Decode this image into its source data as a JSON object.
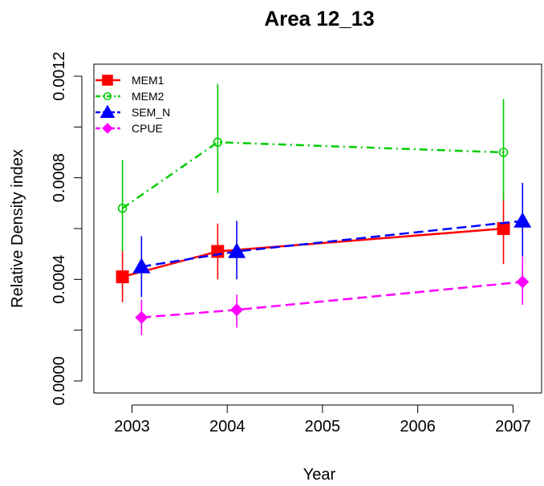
{
  "chart_data": {
    "type": "line",
    "title": "Area 12_13",
    "xlabel": "Year",
    "ylabel": "Relative Density index",
    "x_ticks": [
      "2003",
      "2004",
      "2005",
      "2006",
      "2007"
    ],
    "y_ticks": [
      "0.0000",
      "0.0004",
      "0.0008",
      "0.0012"
    ],
    "xlim": [
      2002.6,
      2007.3
    ],
    "ylim": [
      0.0,
      0.0012
    ],
    "legend_position": "top-left",
    "grid": false,
    "series": [
      {
        "name": "MEM1",
        "color": "#ff0000",
        "marker": "square",
        "line_style": "solid",
        "x": [
          2002.9,
          2003.9,
          2006.9
        ],
        "y": [
          0.00041,
          0.00051,
          0.0006
        ],
        "lower": [
          0.00031,
          0.0004,
          0.00046
        ],
        "upper": [
          0.00053,
          0.00062,
          0.00074
        ]
      },
      {
        "name": "MEM2",
        "color": "#00cd00",
        "marker": "circle-open",
        "line_style": "dashdot",
        "x": [
          2002.9,
          2003.9,
          2006.9
        ],
        "y": [
          0.00068,
          0.00094,
          0.0009
        ],
        "lower": [
          0.00051,
          0.00074,
          0.00071
        ],
        "upper": [
          0.00087,
          0.00117,
          0.00111
        ]
      },
      {
        "name": "SEM_N",
        "color": "#0000ff",
        "marker": "triangle",
        "line_style": "dashed",
        "x": [
          2003.1,
          2004.1,
          2007.1
        ],
        "y": [
          0.00045,
          0.00051,
          0.00063
        ],
        "lower": [
          0.00033,
          0.0004,
          0.00049
        ],
        "upper": [
          0.00057,
          0.00063,
          0.00078
        ]
      },
      {
        "name": "CPUE",
        "color": "#ff00ff",
        "marker": "diamond",
        "line_style": "dashed",
        "x": [
          2003.1,
          2004.1,
          2007.1
        ],
        "y": [
          0.00025,
          0.00028,
          0.00039
        ],
        "lower": [
          0.00018,
          0.00021,
          0.0003
        ],
        "upper": [
          0.00032,
          0.00034,
          0.00049
        ]
      }
    ]
  }
}
